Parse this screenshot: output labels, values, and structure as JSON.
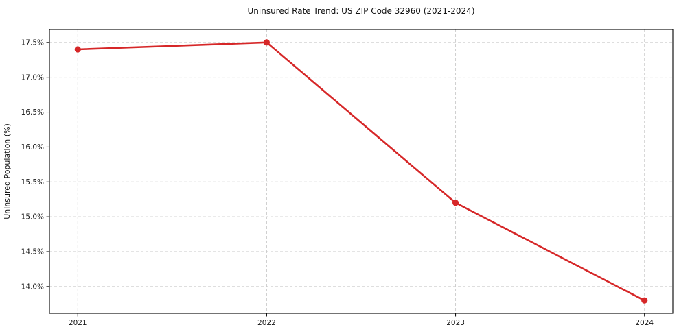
{
  "figure": {
    "background": "#ffffff"
  },
  "chart_data": {
    "type": "line",
    "title": "Uninsured Rate Trend: US ZIP Code 32960 (2021-2024)",
    "xlabel": "",
    "ylabel": "Uninsured Population (%)",
    "x": [
      2021,
      2022,
      2023,
      2024
    ],
    "series": [
      {
        "name": "Uninsured Population (%)",
        "values": [
          17.4,
          17.5,
          15.2,
          13.8
        ],
        "color": "#d62728",
        "marker": "circle",
        "line_width": 2.6,
        "marker_radius": 4.6
      }
    ],
    "xticks": [
      2021,
      2022,
      2023,
      2024
    ],
    "xtick_labels": [
      "2021",
      "2022",
      "2023",
      "2024"
    ],
    "yticks": [
      14.0,
      14.5,
      15.0,
      15.5,
      16.0,
      16.5,
      17.0,
      17.5
    ],
    "ytick_suffix": "%",
    "ytick_decimals": 1,
    "xlim": [
      2020.85,
      2024.15
    ],
    "ylim": [
      13.615,
      17.685
    ],
    "grid": true,
    "grid_on": "both",
    "grid_color": "#c9c9c9",
    "grid_dash": "4 3",
    "spine_color": "#000000",
    "tick_color": "#000000",
    "legend": false
  }
}
